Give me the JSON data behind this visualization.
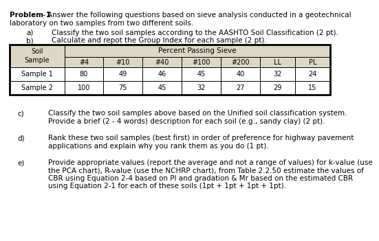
{
  "title_line1_bold": "Problem 1",
  "title_line1_rest": "- Answer the following questions based on sieve analysis conducted in a geotechnical",
  "title_line2": "laboratory on two samples from two different soils.",
  "items_ab": [
    {
      "label": "a)",
      "text": "Classify the two soil samples according to the AASHTO Soil Classification (2 pt)."
    },
    {
      "label": "b)",
      "text": "Calculate and repot the Group Index for each sample (2 pt)."
    }
  ],
  "table": {
    "col_widths": [
      1.4,
      1.0,
      1.0,
      1.0,
      1.0,
      1.0,
      0.9,
      0.9
    ],
    "header_bg": "#ddd8c4",
    "cell_bg": "#ffffff",
    "border_color": "#000000",
    "sub_headers": [
      "#4",
      "#10",
      "#40",
      "#100",
      "#200",
      "LL",
      "PL"
    ],
    "data_rows": [
      [
        "Sample 1",
        "80",
        "49",
        "46",
        "45",
        "40",
        "32",
        "24"
      ],
      [
        "Sample 2",
        "100",
        "75",
        "45",
        "32",
        "27",
        "29",
        "15"
      ]
    ]
  },
  "bottom_items": [
    {
      "label": "c)",
      "lines": [
        "Classify the two soil samples above based on the Unified soil classification system.",
        "Provide a brief (2 - 4 words) description for each soil (e.g., sandy clay) (2 pt)."
      ]
    },
    {
      "label": "d)",
      "lines": [
        "Rank these two soil samples (best first) in order of preference for highway pavement",
        "applications and explain why you rank them as you do (1 pt)."
      ]
    },
    {
      "label": "e)",
      "lines": [
        "Provide appropriate values (report the average and not a range of values) for k-value (use",
        "the PCA chart), R-value (use the NCHRP chart), from Table 2.2.50 estimate the values of",
        "CBR using Equation 2-4 based on PI and gradation & Mr based on the estimated CBR",
        "using Equation 2-1 for each of these soils (1pt + 1pt + 1pt + 1pt)."
      ]
    }
  ],
  "bg_color": "#ffffff",
  "text_color": "#000000"
}
